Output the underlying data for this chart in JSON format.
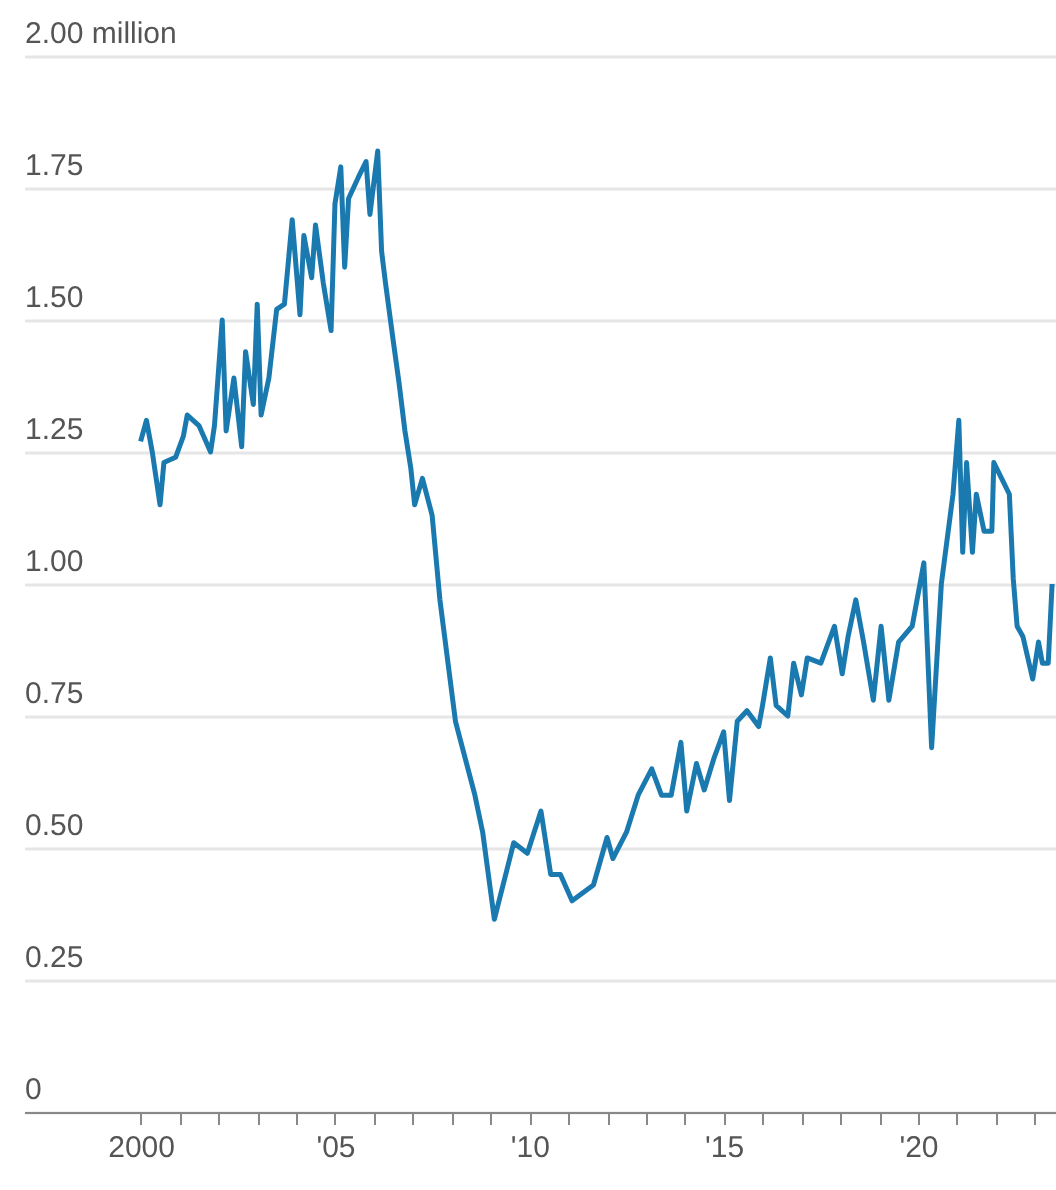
{
  "chart_data": {
    "type": "line",
    "x": [
      2000.0,
      2000.15,
      2000.3,
      2000.5,
      2000.6,
      2000.9,
      2001.1,
      2001.2,
      2001.5,
      2001.8,
      2001.9,
      2002.1,
      2002.2,
      2002.4,
      2002.6,
      2002.7,
      2002.9,
      2003.0,
      2003.1,
      2003.3,
      2003.5,
      2003.7,
      2003.9,
      2004.1,
      2004.2,
      2004.4,
      2004.5,
      2004.7,
      2004.9,
      2005.0,
      2005.15,
      2005.25,
      2005.35,
      2005.6,
      2005.8,
      2005.9,
      2006.1,
      2006.2,
      2006.3,
      2006.5,
      2006.65,
      2006.8,
      2006.95,
      2007.05,
      2007.25,
      2007.5,
      2007.7,
      2008.1,
      2008.6,
      2008.8,
      2009.1,
      2009.6,
      2009.95,
      2010.3,
      2010.55,
      2010.8,
      2011.1,
      2011.65,
      2012.0,
      2012.15,
      2012.5,
      2012.8,
      2013.15,
      2013.4,
      2013.65,
      2013.9,
      2014.05,
      2014.3,
      2014.5,
      2014.75,
      2015.0,
      2015.15,
      2015.35,
      2015.6,
      2015.9,
      2016.0,
      2016.2,
      2016.35,
      2016.65,
      2016.8,
      2017.0,
      2017.15,
      2017.5,
      2017.85,
      2018.05,
      2018.2,
      2018.4,
      2018.6,
      2018.85,
      2019.05,
      2019.25,
      2019.5,
      2019.85,
      2020.15,
      2020.35,
      2020.6,
      2020.9,
      2021.05,
      2021.15,
      2021.25,
      2021.4,
      2021.5,
      2021.7,
      2021.9,
      2021.95,
      2022.15,
      2022.35,
      2022.45,
      2022.55,
      2022.7,
      2022.95,
      2023.1,
      2023.2,
      2023.35,
      2023.45
    ],
    "series": [
      {
        "color": "#1a7ab0",
        "values": [
          1.27,
          1.31,
          1.25,
          1.15,
          1.23,
          1.24,
          1.28,
          1.32,
          1.3,
          1.25,
          1.3,
          1.5,
          1.29,
          1.39,
          1.26,
          1.44,
          1.34,
          1.53,
          1.32,
          1.39,
          1.52,
          1.53,
          1.69,
          1.51,
          1.66,
          1.58,
          1.68,
          1.57,
          1.48,
          1.72,
          1.79,
          1.6,
          1.73,
          1.77,
          1.8,
          1.7,
          1.82,
          1.63,
          1.57,
          1.46,
          1.38,
          1.29,
          1.22,
          1.15,
          1.2,
          1.13,
          0.97,
          0.74,
          0.6,
          0.53,
          0.365,
          0.51,
          0.49,
          0.57,
          0.45,
          0.45,
          0.4,
          0.43,
          0.52,
          0.48,
          0.53,
          0.6,
          0.65,
          0.6,
          0.6,
          0.7,
          0.57,
          0.66,
          0.61,
          0.67,
          0.72,
          0.59,
          0.74,
          0.76,
          0.73,
          0.77,
          0.86,
          0.77,
          0.75,
          0.85,
          0.79,
          0.86,
          0.85,
          0.92,
          0.83,
          0.9,
          0.97,
          0.89,
          0.78,
          0.92,
          0.78,
          0.89,
          0.92,
          1.04,
          0.69,
          1.0,
          1.17,
          1.31,
          1.06,
          1.23,
          1.06,
          1.17,
          1.1,
          1.1,
          1.23,
          1.2,
          1.17,
          1.01,
          0.92,
          0.9,
          0.82,
          0.89,
          0.85,
          0.85,
          1.0
        ]
      }
    ],
    "xlim": [
      1997,
      2023.55
    ],
    "xticks": [
      {
        "value": 2000,
        "label": "2000"
      },
      {
        "value": 2001,
        "label": null
      },
      {
        "value": 2002,
        "label": null
      },
      {
        "value": 2003,
        "label": null
      },
      {
        "value": 2004,
        "label": null
      },
      {
        "value": 2005,
        "label": "'05"
      },
      {
        "value": 2006,
        "label": null
      },
      {
        "value": 2007,
        "label": null
      },
      {
        "value": 2008,
        "label": null
      },
      {
        "value": 2009,
        "label": null
      },
      {
        "value": 2010,
        "label": "'10"
      },
      {
        "value": 2011,
        "label": null
      },
      {
        "value": 2012,
        "label": null
      },
      {
        "value": 2013,
        "label": null
      },
      {
        "value": 2014,
        "label": null
      },
      {
        "value": 2015,
        "label": "'15"
      },
      {
        "value": 2016,
        "label": null
      },
      {
        "value": 2017,
        "label": null
      },
      {
        "value": 2018,
        "label": null
      },
      {
        "value": 2019,
        "label": null
      },
      {
        "value": 2020,
        "label": "'20"
      },
      {
        "value": 2021,
        "label": null
      },
      {
        "value": 2022,
        "label": null
      },
      {
        "value": 2023,
        "label": null
      }
    ],
    "ylim": [
      0,
      2
    ],
    "yticks": [
      0,
      {
        "value": 0.25,
        "label": "0.25"
      },
      {
        "value": 0.5,
        "label": "0.50"
      },
      {
        "value": 0.75,
        "label": "0.75"
      },
      {
        "value": 1,
        "label": "1.00"
      },
      {
        "value": 1.25,
        "label": "1.25"
      },
      {
        "value": 1.5,
        "label": "1.50"
      },
      {
        "value": 1.75,
        "label": "1.75"
      },
      {
        "value": 2,
        "label": "2.00 million"
      }
    ],
    "grid": "y",
    "line_style": "solid",
    "marker": "none"
  }
}
